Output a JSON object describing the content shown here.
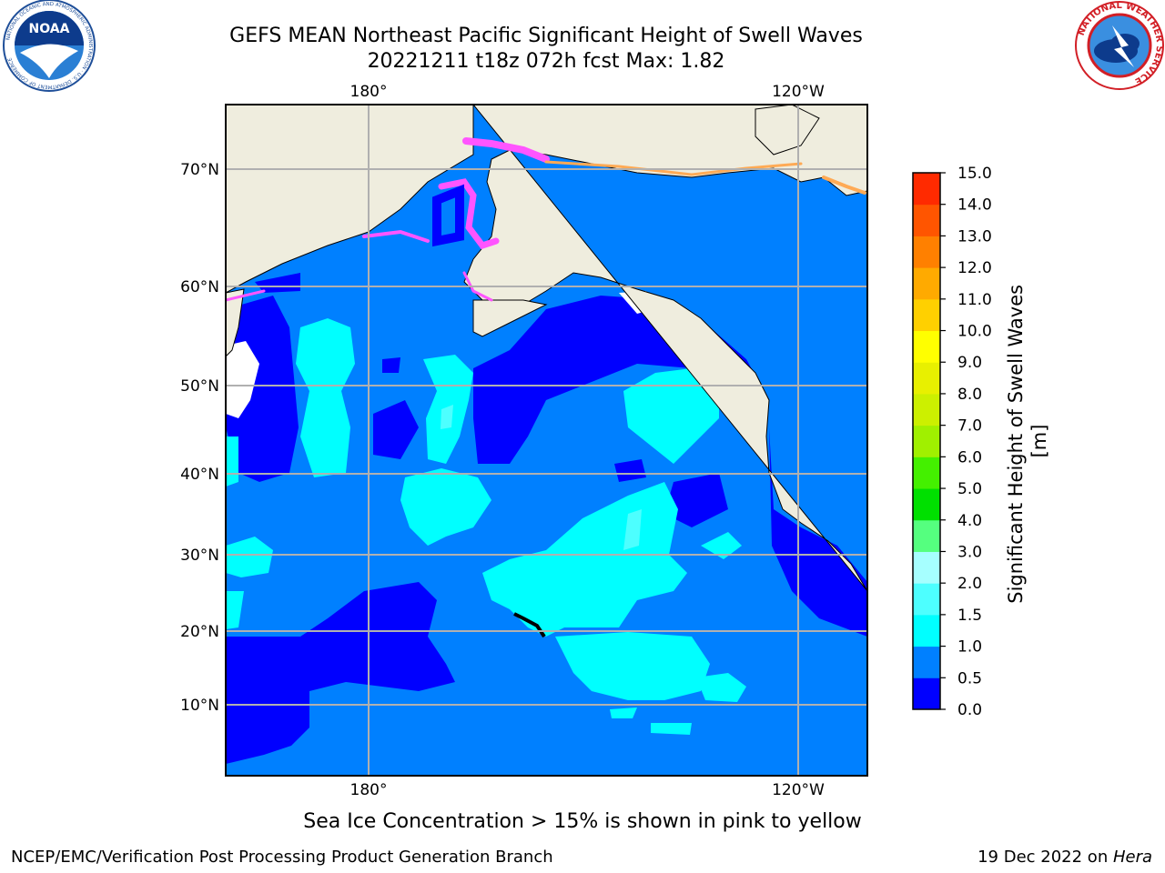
{
  "header": {
    "title_line1": "GEFS MEAN Northeast Pacific Significant Height of Swell Waves",
    "title_line2": "20221211 t18z 072h fcst   Max: 1.82"
  },
  "logos": {
    "left": "NOAA",
    "left_ring_text": "NATIONAL OCEANIC AND ATMOSPHERIC ADMINISTRATION · U.S. DEPARTMENT OF COMMERCE",
    "right_ring_text": "NATIONAL WEATHER SERVICE"
  },
  "map": {
    "lon_labels": [
      "180°",
      "120°W"
    ],
    "lat_labels": [
      "70°N",
      "60°N",
      "50°N",
      "40°N",
      "30°N",
      "20°N",
      "10°N"
    ],
    "grid": true,
    "colors": {
      "land": "#efedde",
      "sea_base": "#0080ff",
      "sea_low": "#0000ff",
      "sea_mid": "#00ffff",
      "sea_high": "#4dffff",
      "ice_pink": "#ff55ff",
      "ice_orange": "#ffaa55"
    }
  },
  "colorbar": {
    "label": "Significant Height of Swell Waves [m]",
    "ticks": [
      "0.0",
      "0.5",
      "1.0",
      "1.5",
      "2.0",
      "3.0",
      "4.0",
      "5.0",
      "6.0",
      "7.0",
      "8.0",
      "9.0",
      "10.0",
      "11.0",
      "12.0",
      "13.0",
      "14.0",
      "15.0"
    ],
    "colors": [
      "#0000ff",
      "#0080ff",
      "#00ffff",
      "#4dffff",
      "#a6ffff",
      "#55ff7f",
      "#00e000",
      "#44f000",
      "#a0f000",
      "#ccf000",
      "#e8f000",
      "#ffff00",
      "#ffd000",
      "#ffaa00",
      "#ff8000",
      "#ff5500",
      "#ff2a00"
    ]
  },
  "note": "Sea Ice Concentration > 15% is shown in pink to yellow",
  "footer": {
    "left": "NCEP/EMC/Verification Post Processing Product Generation Branch",
    "right_prefix": "19 Dec 2022 on ",
    "right_host": "Hera"
  }
}
